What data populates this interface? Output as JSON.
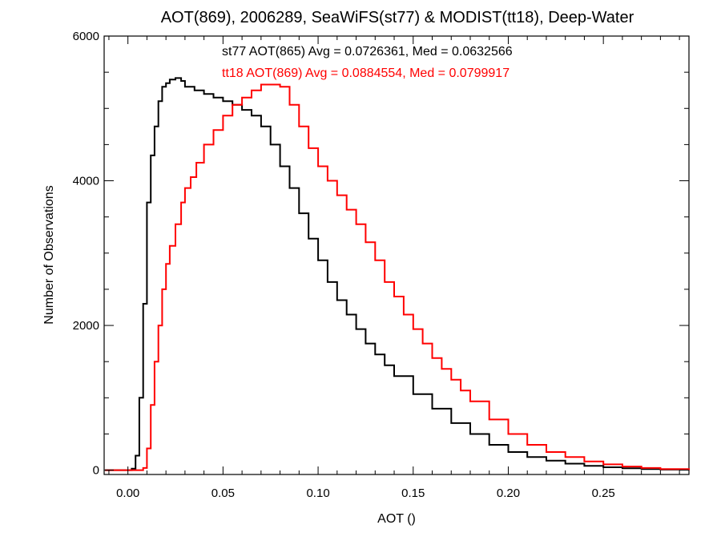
{
  "chart_data": {
    "type": "line",
    "title": "AOT(869), 2006289, SeaWiFS(st77) & MODIST(tt18), Deep-Water",
    "xlabel": "AOT ()",
    "ylabel": "Number of Observations",
    "xlim": [
      -0.0125,
      0.295
    ],
    "ylim": [
      -60,
      6000
    ],
    "xticks": [
      0.0,
      0.05,
      0.1,
      0.15,
      0.2,
      0.25
    ],
    "xtick_labels": [
      "0.00",
      "0.05",
      "0.10",
      "0.15",
      "0.20",
      "0.25"
    ],
    "yticks": [
      0,
      2000,
      4000,
      6000
    ],
    "ytick_labels": [
      "0",
      "2000",
      "4000",
      "6000"
    ],
    "grid": false,
    "legend_placement": "top-center",
    "series": [
      {
        "name": "st77 AOT(865) Avg = 0.0726361, Med = 0.0632566",
        "color": "#000000",
        "x": [
          -0.012,
          0.0,
          0.002,
          0.004,
          0.006,
          0.008,
          0.01,
          0.012,
          0.014,
          0.016,
          0.018,
          0.02,
          0.022,
          0.025,
          0.028,
          0.03,
          0.035,
          0.04,
          0.045,
          0.05,
          0.055,
          0.06,
          0.065,
          0.07,
          0.075,
          0.08,
          0.085,
          0.09,
          0.095,
          0.1,
          0.105,
          0.11,
          0.115,
          0.12,
          0.125,
          0.13,
          0.135,
          0.14,
          0.15,
          0.16,
          0.17,
          0.18,
          0.19,
          0.2,
          0.21,
          0.22,
          0.23,
          0.24,
          0.25,
          0.26,
          0.27,
          0.28,
          0.295
        ],
        "y": [
          0,
          0,
          20,
          200,
          1000,
          2300,
          3700,
          4350,
          4750,
          5100,
          5300,
          5350,
          5400,
          5420,
          5380,
          5300,
          5250,
          5200,
          5150,
          5100,
          5050,
          4980,
          4900,
          4750,
          4500,
          4200,
          3900,
          3550,
          3200,
          2900,
          2600,
          2350,
          2150,
          1950,
          1750,
          1600,
          1450,
          1300,
          1050,
          850,
          650,
          500,
          350,
          250,
          180,
          130,
          90,
          60,
          40,
          25,
          15,
          8,
          0
        ]
      },
      {
        "name": "tt18 AOT(869) Avg = 0.0884554, Med = 0.0799917",
        "color": "#ff0000",
        "x": [
          -0.012,
          0.0,
          0.006,
          0.008,
          0.01,
          0.012,
          0.014,
          0.016,
          0.018,
          0.02,
          0.022,
          0.025,
          0.028,
          0.03,
          0.033,
          0.036,
          0.04,
          0.045,
          0.05,
          0.055,
          0.06,
          0.065,
          0.07,
          0.075,
          0.08,
          0.085,
          0.09,
          0.095,
          0.1,
          0.105,
          0.11,
          0.115,
          0.12,
          0.125,
          0.13,
          0.135,
          0.14,
          0.145,
          0.15,
          0.155,
          0.16,
          0.165,
          0.17,
          0.175,
          0.18,
          0.19,
          0.2,
          0.21,
          0.22,
          0.23,
          0.24,
          0.25,
          0.26,
          0.27,
          0.28,
          0.295
        ],
        "y": [
          0,
          0,
          0,
          30,
          300,
          900,
          1500,
          2000,
          2500,
          2850,
          3100,
          3400,
          3700,
          3900,
          4050,
          4250,
          4500,
          4700,
          4900,
          5050,
          5150,
          5250,
          5330,
          5330,
          5300,
          5050,
          4750,
          4450,
          4200,
          4000,
          3800,
          3600,
          3400,
          3150,
          2900,
          2600,
          2400,
          2150,
          1950,
          1750,
          1550,
          1400,
          1250,
          1100,
          950,
          700,
          500,
          350,
          250,
          180,
          120,
          80,
          50,
          30,
          15,
          0
        ]
      }
    ]
  }
}
